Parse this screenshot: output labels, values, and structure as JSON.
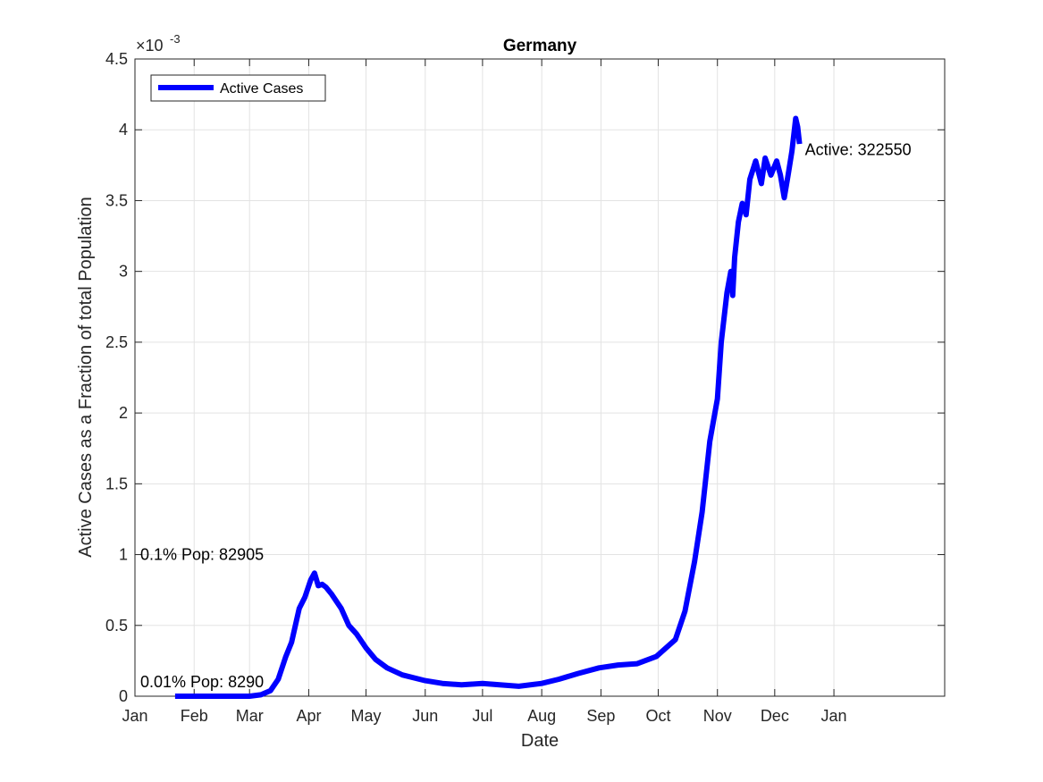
{
  "chart_data": {
    "type": "line",
    "title": "Germany",
    "xlabel": "Date",
    "ylabel": "Active Cases as a Fraction of total Population",
    "y_exponent_label": "×10",
    "y_exponent_power": "-3",
    "ylim": [
      0,
      0.0045
    ],
    "xlim": [
      "2020-01-01",
      "2021-02-28"
    ],
    "grid": true,
    "legend_position": "top-left",
    "x_tick_labels": [
      "Jan",
      "Feb",
      "Mar",
      "Apr",
      "May",
      "Jun",
      "Jul",
      "Aug",
      "Sep",
      "Oct",
      "Nov",
      "Dec",
      "Jan"
    ],
    "x_tick_dates": [
      "2020-01-01",
      "2020-02-01",
      "2020-03-01",
      "2020-04-01",
      "2020-05-01",
      "2020-06-01",
      "2020-07-01",
      "2020-08-01",
      "2020-09-01",
      "2020-10-01",
      "2020-11-01",
      "2020-12-01",
      "2021-01-01"
    ],
    "y_tick_values": [
      0,
      0.0005,
      0.001,
      0.0015,
      0.002,
      0.0025,
      0.003,
      0.0035,
      0.004,
      0.0045
    ],
    "y_tick_labels": [
      "0",
      "0.5",
      "1",
      "1.5",
      "2",
      "2.5",
      "3",
      "3.5",
      "4",
      "4.5"
    ],
    "series": [
      {
        "name": "Active Cases",
        "color": "#0000ff",
        "points": [
          [
            "2020-01-22",
            0
          ],
          [
            "2020-02-10",
            0
          ],
          [
            "2020-03-01",
            0
          ],
          [
            "2020-03-07",
            1e-05
          ],
          [
            "2020-03-12",
            4e-05
          ],
          [
            "2020-03-16",
            0.00012
          ],
          [
            "2020-03-20",
            0.00028
          ],
          [
            "2020-03-23",
            0.00038
          ],
          [
            "2020-03-27",
            0.00062
          ],
          [
            "2020-03-30",
            0.0007
          ],
          [
            "2020-04-02",
            0.00082
          ],
          [
            "2020-04-04",
            0.00087
          ],
          [
            "2020-04-06",
            0.00078
          ],
          [
            "2020-04-08",
            0.00079
          ],
          [
            "2020-04-10",
            0.00077
          ],
          [
            "2020-04-13",
            0.00072
          ],
          [
            "2020-04-18",
            0.00062
          ],
          [
            "2020-04-22",
            0.0005
          ],
          [
            "2020-04-26",
            0.00044
          ],
          [
            "2020-05-01",
            0.00034
          ],
          [
            "2020-05-06",
            0.00026
          ],
          [
            "2020-05-12",
            0.0002
          ],
          [
            "2020-05-20",
            0.00015
          ],
          [
            "2020-06-01",
            0.00011
          ],
          [
            "2020-06-10",
            9e-05
          ],
          [
            "2020-06-20",
            8e-05
          ],
          [
            "2020-07-01",
            9e-05
          ],
          [
            "2020-07-10",
            8e-05
          ],
          [
            "2020-07-20",
            7e-05
          ],
          [
            "2020-08-01",
            9e-05
          ],
          [
            "2020-08-10",
            0.00012
          ],
          [
            "2020-08-20",
            0.00016
          ],
          [
            "2020-08-31",
            0.0002
          ],
          [
            "2020-09-10",
            0.00022
          ],
          [
            "2020-09-20",
            0.00023
          ],
          [
            "2020-09-30",
            0.00028
          ],
          [
            "2020-10-05",
            0.00034
          ],
          [
            "2020-10-10",
            0.0004
          ],
          [
            "2020-10-15",
            0.0006
          ],
          [
            "2020-10-20",
            0.00095
          ],
          [
            "2020-10-24",
            0.0013
          ],
          [
            "2020-10-28",
            0.0018
          ],
          [
            "2020-11-01",
            0.0021
          ],
          [
            "2020-11-03",
            0.0025
          ],
          [
            "2020-11-06",
            0.00285
          ],
          [
            "2020-11-08",
            0.003
          ],
          [
            "2020-11-09",
            0.00283
          ],
          [
            "2020-11-10",
            0.0031
          ],
          [
            "2020-11-12",
            0.00335
          ],
          [
            "2020-11-14",
            0.00348
          ],
          [
            "2020-11-16",
            0.0034
          ],
          [
            "2020-11-18",
            0.00365
          ],
          [
            "2020-11-21",
            0.00378
          ],
          [
            "2020-11-24",
            0.00362
          ],
          [
            "2020-11-26",
            0.0038
          ],
          [
            "2020-11-29",
            0.00368
          ],
          [
            "2020-12-02",
            0.00378
          ],
          [
            "2020-12-04",
            0.00368
          ],
          [
            "2020-12-06",
            0.00352
          ],
          [
            "2020-12-08",
            0.00368
          ],
          [
            "2020-12-10",
            0.00385
          ],
          [
            "2020-12-12",
            0.00408
          ],
          [
            "2020-12-13",
            0.00402
          ],
          [
            "2020-12-14",
            0.0039
          ]
        ]
      }
    ],
    "annotations": [
      {
        "text": "0.1% Pop: 82905",
        "date": "2020-01-01",
        "y": 0.001
      },
      {
        "text": "0.01% Pop: 8290",
        "date": "2020-01-01",
        "y": 0.0001
      },
      {
        "text": "Active: 322550",
        "date": "2020-12-14",
        "y": 0.00386
      }
    ]
  }
}
